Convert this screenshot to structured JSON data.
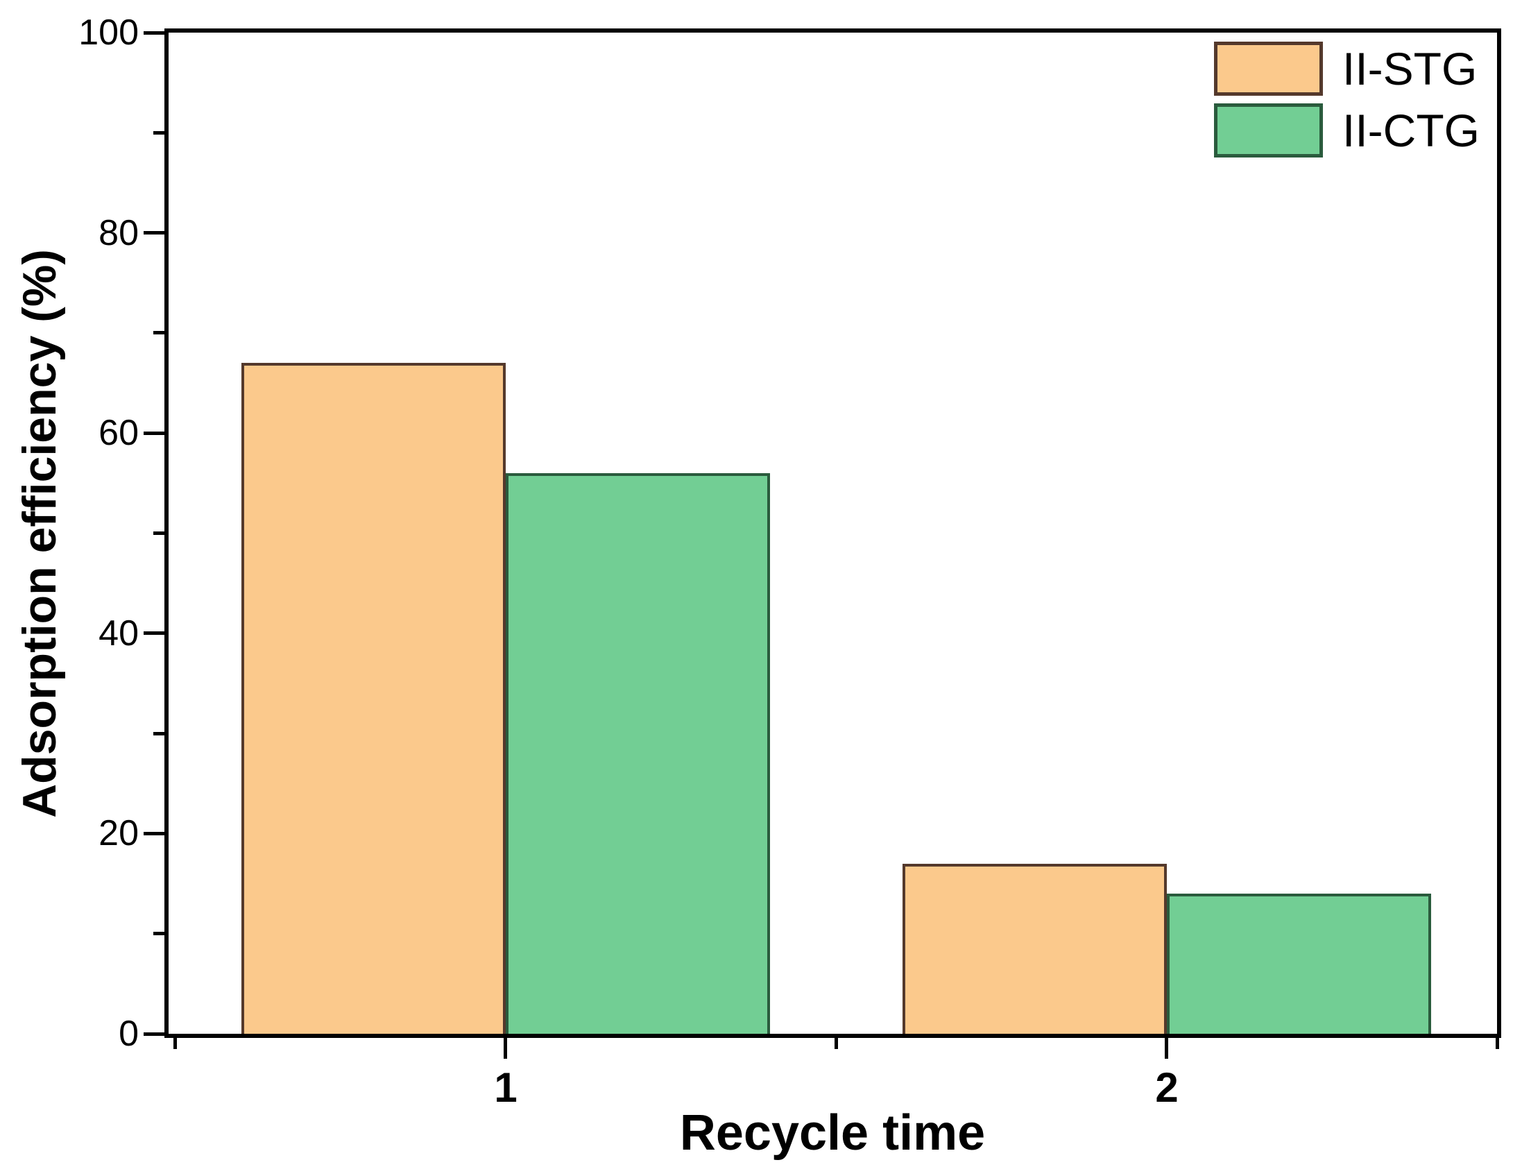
{
  "figure": {
    "background": "#ffffff"
  },
  "chart_data": {
    "type": "bar",
    "title": "",
    "xlabel": "Recycle time",
    "ylabel": "Adsorption efficiency (%)",
    "categories": [
      "1",
      "2"
    ],
    "category_positions": [
      1,
      2
    ],
    "series": [
      {
        "name": "II-STG",
        "values": [
          67,
          17
        ],
        "fill_color": "#FBC98C",
        "border_color": "#54392C"
      },
      {
        "name": "II-CTG",
        "values": [
          56,
          14
        ],
        "fill_color": "#72CE94",
        "border_color": "#2A5B3D"
      }
    ],
    "ylim": [
      0,
      100
    ],
    "xlim": [
      0.49,
      2.5
    ],
    "y_major_ticks": [
      0,
      20,
      40,
      60,
      80,
      100
    ],
    "y_tick_labels": [
      "0",
      "20",
      "40",
      "60",
      "80",
      "100"
    ],
    "y_minor_ticks": [
      10,
      30,
      50,
      70,
      90
    ],
    "x_major_ticks": [
      1,
      2
    ],
    "x_tick_labels": [
      "1",
      "2"
    ],
    "x_minor_ticks": [
      0.5,
      1.5,
      2.5
    ],
    "bar_width_units": 0.4,
    "grid": false,
    "legend_position": "top-right",
    "axis_color": "#000000",
    "text_color": "#000000"
  }
}
